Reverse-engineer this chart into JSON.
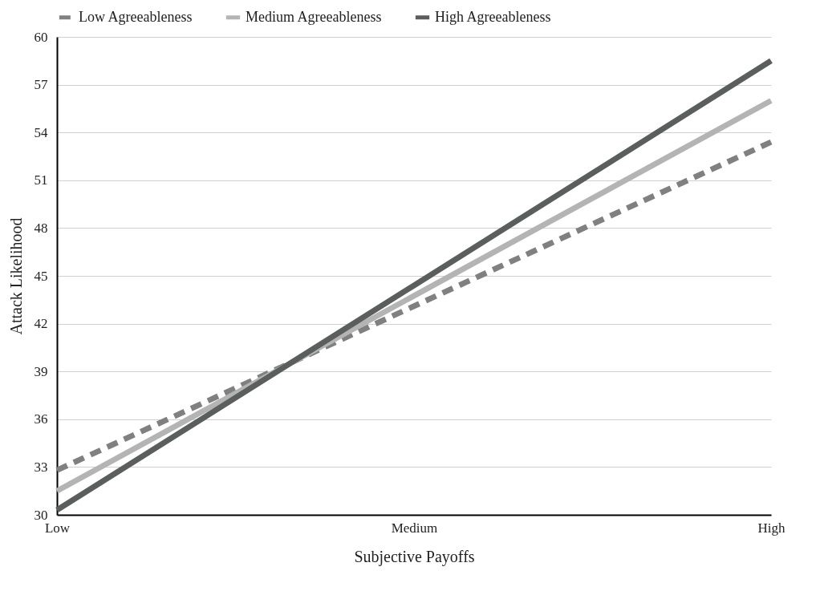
{
  "chart_data": {
    "type": "line",
    "xlabel": "Subjective Payoffs",
    "ylabel": "Attack Likelihood",
    "categories": [
      "Low",
      "Medium",
      "High"
    ],
    "series": [
      {
        "name": "Low Agreeableness",
        "color": "#808080",
        "line_style": "dashed",
        "values": [
          32.8,
          43.1,
          53.4
        ]
      },
      {
        "name": "Medium Agreeableness",
        "color": "#b4b4b4",
        "line_style": "solid",
        "values": [
          31.5,
          43.75,
          56.0
        ]
      },
      {
        "name": "High Agreeableness",
        "color": "#5a5e5d",
        "line_style": "solid",
        "values": [
          30.3,
          44.4,
          58.5
        ]
      }
    ],
    "ylim": [
      30,
      60
    ],
    "yticks": [
      30,
      33,
      36,
      39,
      42,
      45,
      48,
      51,
      54,
      57,
      60
    ],
    "grid": "y",
    "legend": "top",
    "marker": "none"
  }
}
